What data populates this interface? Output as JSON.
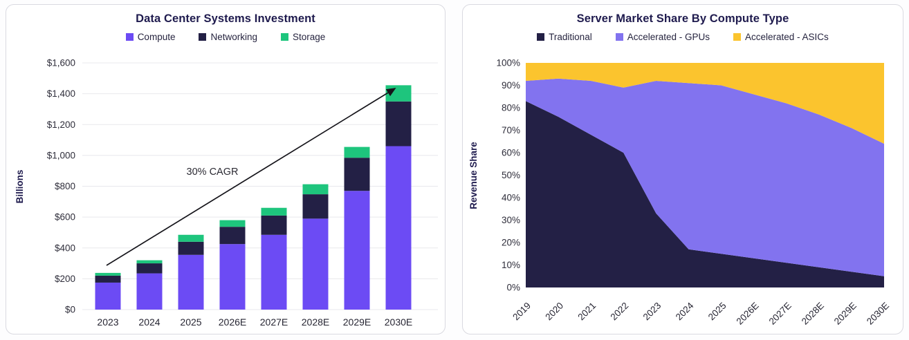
{
  "chart_data": [
    {
      "type": "bar",
      "stacked": true,
      "title": "Data Center Systems Investment",
      "ylabel": "Billions",
      "categories": [
        "2023",
        "2024",
        "2025",
        "2026E",
        "2027E",
        "2028E",
        "2029E",
        "2030E"
      ],
      "series": [
        {
          "name": "Compute",
          "color": "#6c4bf4",
          "values": [
            175,
            235,
            355,
            425,
            485,
            590,
            770,
            1060
          ]
        },
        {
          "name": "Networking",
          "color": "#232045",
          "values": [
            45,
            65,
            85,
            112,
            125,
            158,
            215,
            290
          ]
        },
        {
          "name": "Storage",
          "color": "#1ec57d",
          "values": [
            18,
            20,
            45,
            43,
            50,
            65,
            70,
            105
          ]
        }
      ],
      "ylim": [
        0,
        1600
      ],
      "ytick_step": 200,
      "ytick_labels": [
        "$0",
        "$200",
        "$400",
        "$600",
        "$800",
        "$1,000",
        "$1,200",
        "$1,400",
        "$1,600"
      ],
      "annotation": "30% CAGR",
      "grid": true,
      "legend_position": "top"
    },
    {
      "type": "area",
      "stacked": true,
      "title": "Server Market Share By Compute Type",
      "ylabel": "Revenue Share",
      "categories": [
        "2019",
        "2020",
        "2021",
        "2022",
        "2023",
        "2024",
        "2025",
        "2026E",
        "2027E",
        "2028E",
        "2029E",
        "2030E"
      ],
      "series": [
        {
          "name": "Traditional",
          "color": "#232045",
          "values": [
            83,
            76,
            68,
            60,
            33,
            17,
            15,
            13,
            11,
            9,
            7,
            5
          ]
        },
        {
          "name": "Accelerated - GPUs",
          "color": "#8273ef",
          "values": [
            9,
            17,
            24,
            29,
            59,
            74,
            75,
            73,
            71,
            68,
            64,
            59
          ]
        },
        {
          "name": "Accelerated - ASICs",
          "color": "#fbc42e",
          "values": [
            8,
            7,
            8,
            11,
            8,
            9,
            10,
            14,
            18,
            23,
            29,
            36
          ]
        }
      ],
      "ylim": [
        0,
        100
      ],
      "ytick_step": 10,
      "ytick_labels": [
        "0%",
        "10%",
        "20%",
        "30%",
        "40%",
        "50%",
        "60%",
        "70%",
        "80%",
        "90%",
        "100%"
      ],
      "grid": false,
      "legend_position": "top"
    }
  ],
  "style_colors": {
    "title_text": "#1f1b4e",
    "tick_text": "#2e2d3a",
    "gridline": "#e8e8ec",
    "arrow": "#15141a",
    "card_border": "#d9d9e0"
  }
}
